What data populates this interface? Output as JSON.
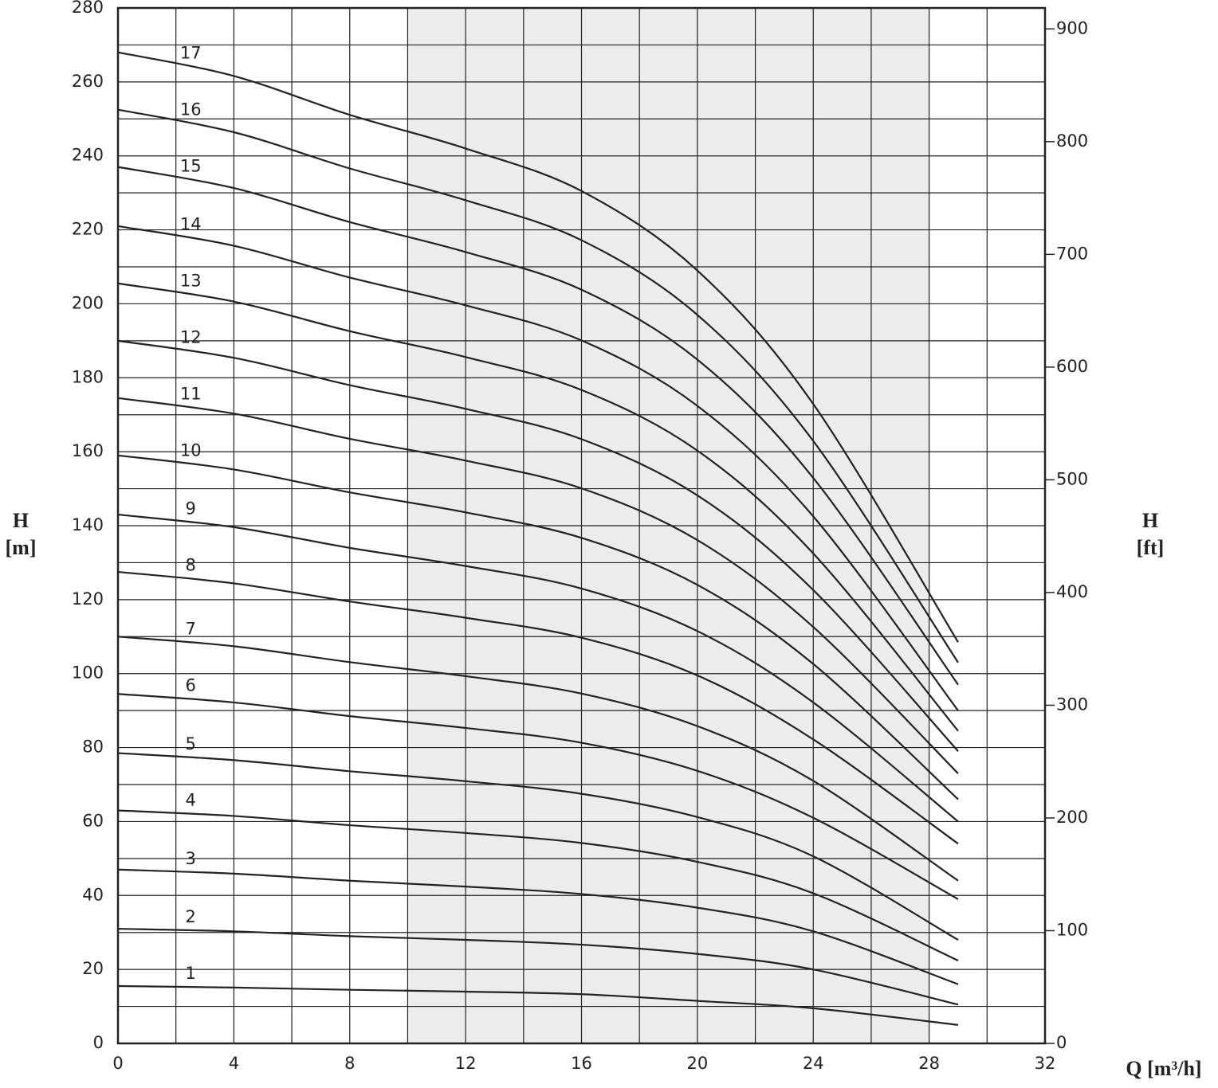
{
  "chart_data": {
    "type": "line",
    "y_label": [
      "H",
      "[m]"
    ],
    "y2_label": [
      "H",
      "[ft]"
    ],
    "x_label": "Q [m³/h]",
    "x": [
      0,
      4,
      8,
      12,
      16,
      20,
      24,
      29
    ],
    "xlim": [
      0,
      32
    ],
    "xticks": [
      0,
      4,
      8,
      12,
      16,
      20,
      24,
      28,
      32
    ],
    "x_minor_ticks": [
      2,
      6,
      10,
      14,
      18,
      22,
      26,
      30
    ],
    "ylim": [
      0,
      280
    ],
    "yticks": [
      0,
      20,
      40,
      60,
      80,
      100,
      120,
      140,
      160,
      180,
      200,
      220,
      240,
      260,
      280
    ],
    "y_minor_ticks": [
      10,
      30,
      50,
      70,
      90,
      110,
      130,
      150,
      170,
      190,
      210,
      230,
      250,
      270
    ],
    "y2lim": [
      0,
      918.6
    ],
    "y2ticks": [
      0,
      100,
      200,
      300,
      400,
      500,
      600,
      700,
      800,
      900
    ],
    "shaded_xrange": [
      10,
      28
    ],
    "shade_color": "#ececec",
    "grid": true,
    "series": [
      {
        "name": "1",
        "color": "#222",
        "values": [
          15.5,
          15.1,
          14.5,
          14.0,
          13.3,
          11.5,
          9.5,
          5
        ]
      },
      {
        "name": "2",
        "color": "#222",
        "values": [
          31,
          30.3,
          29.0,
          28.0,
          26.7,
          24.2,
          20.0,
          10.5
        ]
      },
      {
        "name": "3",
        "color": "#222",
        "values": [
          47,
          45.9,
          44.0,
          42.4,
          40.4,
          36.7,
          30.3,
          16
        ]
      },
      {
        "name": "4",
        "color": "#222",
        "values": [
          63,
          61.5,
          59.0,
          56.9,
          54.2,
          49.1,
          40.6,
          22.4
        ]
      },
      {
        "name": "5",
        "color": "#222",
        "values": [
          78.5,
          76.6,
          73.6,
          70.9,
          67.5,
          61.2,
          50.6,
          28
        ]
      },
      {
        "name": "6",
        "color": "#222",
        "values": [
          94.5,
          92.2,
          88.5,
          85.3,
          81.3,
          73.7,
          61.0,
          39
        ]
      },
      {
        "name": "7",
        "color": "#222",
        "values": [
          110,
          107.4,
          103.1,
          99.3,
          94.6,
          85.8,
          71.0,
          44
        ]
      },
      {
        "name": "8",
        "color": "#222",
        "values": [
          127.5,
          124.4,
          119.5,
          115.1,
          109.7,
          99.5,
          82.2,
          54
        ]
      },
      {
        "name": "9",
        "color": "#222",
        "values": [
          143,
          139.6,
          134.0,
          129.1,
          123.0,
          111.5,
          92.2,
          60
        ]
      },
      {
        "name": "10",
        "color": "#222",
        "values": [
          159,
          155.2,
          149.0,
          143.6,
          136.7,
          124.0,
          102.6,
          66
        ]
      },
      {
        "name": "11",
        "color": "#222",
        "values": [
          174.5,
          170.3,
          163.5,
          157.6,
          150.1,
          136.1,
          112.6,
          73
        ]
      },
      {
        "name": "12",
        "color": "#222",
        "values": [
          190,
          185.4,
          178.0,
          171.6,
          163.4,
          148.2,
          122.6,
          79
        ]
      },
      {
        "name": "13",
        "color": "#222",
        "values": [
          205.5,
          200.6,
          192.6,
          185.6,
          176.7,
          160.3,
          132.5,
          84.5
        ]
      },
      {
        "name": "14",
        "color": "#222",
        "values": [
          221,
          215.7,
          207.1,
          199.6,
          190.1,
          172.4,
          142.5,
          90
        ]
      },
      {
        "name": "15",
        "color": "#222",
        "values": [
          237,
          231.3,
          222.1,
          214.0,
          203.8,
          184.9,
          152.9,
          97
        ]
      },
      {
        "name": "16",
        "color": "#222",
        "values": [
          252.5,
          246.4,
          236.6,
          228.0,
          217.2,
          197.0,
          162.9,
          103
        ]
      },
      {
        "name": "17",
        "color": "#222",
        "values": [
          268,
          261.6,
          251.1,
          242.0,
          230.5,
          209.0,
          172.9,
          108.5
        ]
      }
    ]
  }
}
